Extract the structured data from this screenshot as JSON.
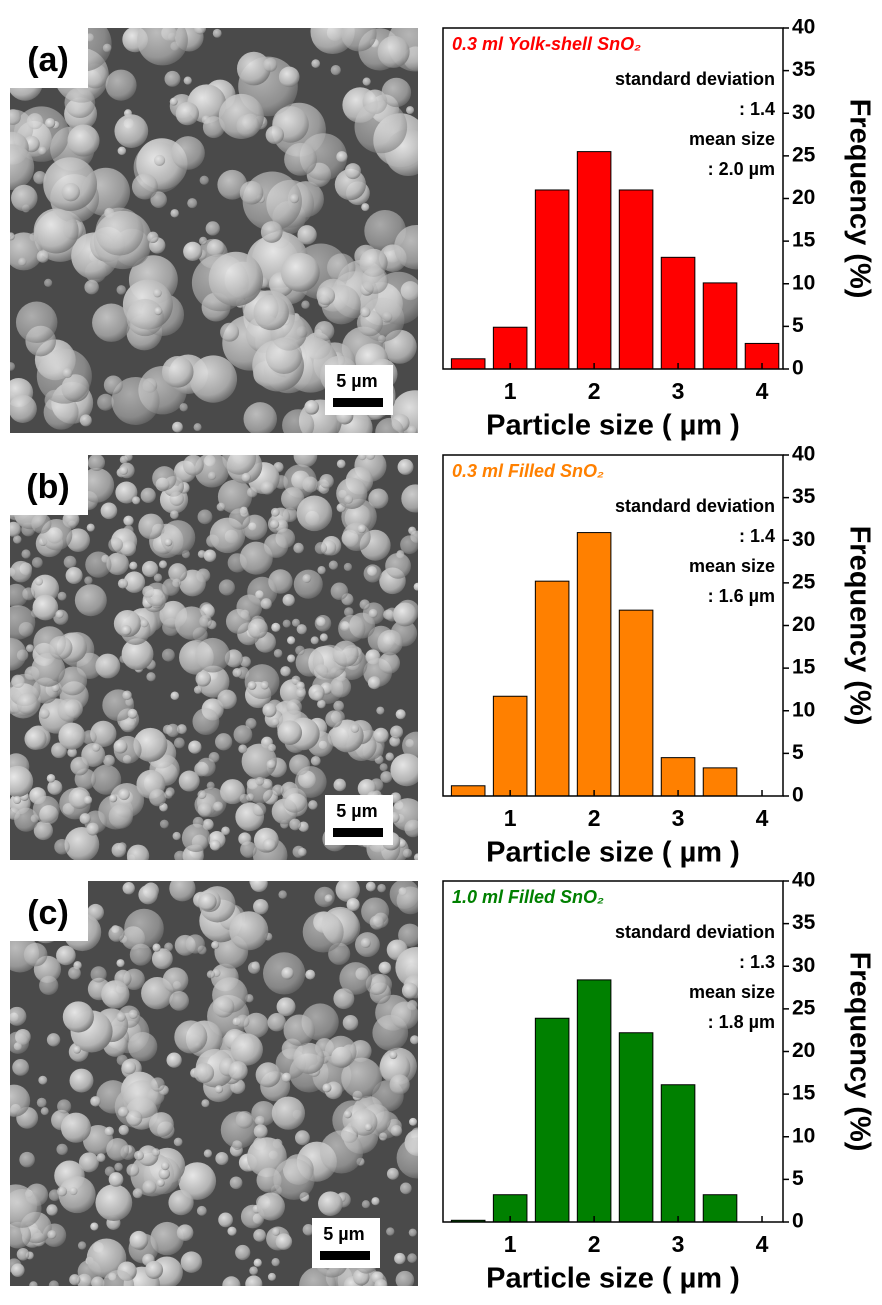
{
  "chart_data": [
    {
      "type": "bar",
      "panel": "(a)",
      "scale_bar": "5 µm",
      "title": "0.3 ml Yolk-shell SnO₂",
      "color": "#ff0000",
      "annotations": [
        "standard deviation",
        ":  1.4",
        "mean size",
        ": 2.0 µm"
      ],
      "x_label": "Particle size ( µm )",
      "y_label": "Frequency (%)",
      "x": [
        0.5,
        1.0,
        1.5,
        2.0,
        2.5,
        3.0,
        3.5,
        4.0
      ],
      "values": [
        1.2,
        4.9,
        21,
        25.5,
        21,
        13.1,
        10.1,
        3.0
      ],
      "xlim": [
        0.2,
        4.25
      ],
      "xticks": [
        1,
        2,
        3,
        4
      ],
      "ylim": [
        0,
        40
      ],
      "yticks": [
        0,
        5,
        10,
        15,
        20,
        25,
        30,
        35,
        40
      ]
    },
    {
      "type": "bar",
      "panel": "(b)",
      "scale_bar": "5 µm",
      "title": "0.3 ml Filled SnO₂",
      "color": "#ff8000",
      "annotations": [
        "standard deviation",
        ":  1.4",
        "mean size",
        ": 1.6 µm"
      ],
      "x_label": "Particle size ( µm )",
      "y_label": "Frequency (%)",
      "x": [
        0.5,
        1.0,
        1.5,
        2.0,
        2.5,
        3.0,
        3.5
      ],
      "values": [
        1.2,
        11.7,
        25.2,
        30.9,
        21.8,
        4.5,
        3.3
      ],
      "xlim": [
        0.2,
        4.25
      ],
      "xticks": [
        1,
        2,
        3,
        4
      ],
      "ylim": [
        0,
        40
      ],
      "yticks": [
        0,
        5,
        10,
        15,
        20,
        25,
        30,
        35,
        40
      ]
    },
    {
      "type": "bar",
      "panel": "(c)",
      "scale_bar": "5 µm",
      "title": "1.0 ml Filled SnO₂",
      "color": "#008000",
      "annotations": [
        "standard deviation",
        ":  1.3",
        "mean size",
        ": 1.8 µm"
      ],
      "x_label": "Particle size ( µm )",
      "y_label": "Frequency (%)",
      "x": [
        0.5,
        1.0,
        1.5,
        2.0,
        2.5,
        3.0,
        3.5
      ],
      "values": [
        0.2,
        3.2,
        23.9,
        28.4,
        22.2,
        16.1,
        3.2
      ],
      "xlim": [
        0.2,
        4.25
      ],
      "xticks": [
        1,
        2,
        3,
        4
      ],
      "ylim": [
        0,
        40
      ],
      "yticks": [
        0,
        5,
        10,
        15,
        20,
        25,
        30,
        35,
        40
      ]
    }
  ]
}
